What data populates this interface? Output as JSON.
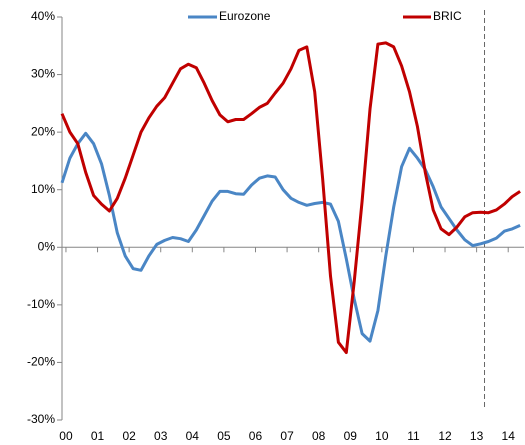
{
  "chart_data": {
    "type": "line",
    "x": [
      -0.125,
      0.125,
      0.375,
      0.625,
      0.875,
      1.125,
      1.375,
      1.625,
      1.875,
      2.125,
      2.375,
      2.625,
      2.875,
      3.125,
      3.375,
      3.625,
      3.875,
      4.125,
      4.375,
      4.625,
      4.875,
      5.125,
      5.375,
      5.625,
      5.875,
      6.125,
      6.375,
      6.625,
      6.875,
      7.125,
      7.375,
      7.625,
      7.875,
      8.125,
      8.375,
      8.625,
      8.875,
      9.125,
      9.375,
      9.625,
      9.875,
      10.125,
      10.375,
      10.625,
      10.875,
      11.125,
      11.375,
      11.625,
      11.875,
      12.125,
      12.375,
      12.625,
      12.875,
      13.125,
      13.375,
      13.625,
      13.875,
      14.125,
      14.375
    ],
    "series": [
      {
        "name": "Eurozone",
        "color": "#4a86c5",
        "values": [
          11.2,
          15.5,
          18,
          19.8,
          18,
          14.5,
          9,
          2.5,
          -1.5,
          -3.7,
          -4,
          -1.5,
          0.5,
          1.2,
          1.7,
          1.5,
          1,
          3,
          5.5,
          8,
          9.7,
          9.7,
          9.3,
          9.2,
          10.8,
          12,
          12.4,
          12.2,
          10,
          8.5,
          7.8,
          7.3,
          7.6,
          7.8,
          7.5,
          4.5,
          -2,
          -9,
          -15,
          -16.3,
          -11,
          -1.5,
          7,
          14,
          17.2,
          15.5,
          13.5,
          10.5,
          7,
          5,
          3,
          1.3,
          0.3,
          0.6,
          1,
          1.6,
          2.8,
          3.2,
          3.8
        ]
      },
      {
        "name": "BRIC",
        "color": "#c00000",
        "values": [
          23.2,
          20,
          18,
          13,
          9,
          7.5,
          6.3,
          8.5,
          12,
          16,
          20,
          22.5,
          24.5,
          26,
          28.5,
          31,
          31.8,
          31.2,
          28.5,
          25.5,
          23,
          21.8,
          22.2,
          22.2,
          23.2,
          24.3,
          25,
          26.8,
          28.5,
          31,
          34.2,
          34.8,
          27,
          12,
          -5,
          -16.5,
          -18.3,
          -6,
          8,
          24,
          35.3,
          35.5,
          34.8,
          31.5,
          27,
          21,
          13,
          6.5,
          3.2,
          2.2,
          3.5,
          5.3,
          6,
          6.1,
          6,
          6.5,
          7.5,
          8.8,
          9.7
        ]
      }
    ],
    "xlim": [
      -0.125,
      14.5
    ],
    "xticks": [
      {
        "value": 0,
        "label": "00"
      },
      {
        "value": 1,
        "label": "01"
      },
      {
        "value": 2,
        "label": "02"
      },
      {
        "value": 3,
        "label": "03"
      },
      {
        "value": 4,
        "label": "04"
      },
      {
        "value": 5,
        "label": "05"
      },
      {
        "value": 6,
        "label": "06"
      },
      {
        "value": 7,
        "label": "07"
      },
      {
        "value": 8,
        "label": "08"
      },
      {
        "value": 9,
        "label": "09"
      },
      {
        "value": 10,
        "label": "10"
      },
      {
        "value": 11,
        "label": "11"
      },
      {
        "value": 12,
        "label": "12"
      },
      {
        "value": 13,
        "label": "13"
      },
      {
        "value": 14,
        "label": "14"
      }
    ],
    "ylim": [
      -30,
      40
    ],
    "yticks": [
      {
        "value": -30,
        "label": "-30%"
      },
      {
        "value": -20,
        "label": "-20%"
      },
      {
        "value": -10,
        "label": "-10%"
      },
      {
        "value": 0,
        "label": "0%"
      },
      {
        "value": 10,
        "label": "10%"
      },
      {
        "value": 20,
        "label": "20%"
      },
      {
        "value": 30,
        "label": "30%"
      },
      {
        "value": 40,
        "label": "40%"
      }
    ],
    "grid": false,
    "legend": "top",
    "vertical_line": {
      "x": 13.25,
      "style": "dashed"
    }
  }
}
